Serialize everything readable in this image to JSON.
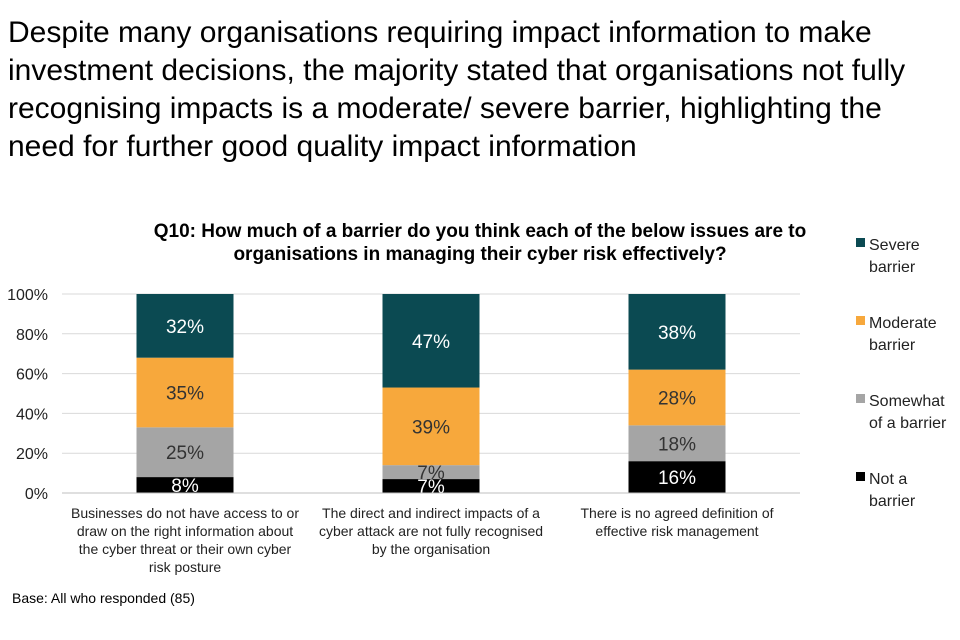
{
  "headline": "Despite many organisations requiring impact information to make investment decisions, the majority stated that organisations not fully recognising impacts is a moderate/ severe barrier, highlighting the need for further good quality impact information",
  "base_note": "Base: All who responded (85)",
  "colors": {
    "severe": "#0b4a52",
    "moderate": "#f7a83c",
    "somewhat": "#a5a5a5",
    "not": "#000000"
  },
  "chart_data": {
    "type": "bar",
    "stacked": true,
    "title": "Q10: How much of a barrier do you think each of the below issues are to organisations in managing their cyber risk effectively?",
    "categories": [
      [
        "Businesses do not have access to or",
        "draw on the right information about",
        "the cyber threat or their own cyber",
        "risk posture"
      ],
      [
        "The direct and indirect impacts of a",
        "cyber attack are not fully recognised",
        "by the organisation"
      ],
      [
        "There is no agreed definition of",
        "effective risk management"
      ]
    ],
    "series": [
      {
        "name": "Not a barrier",
        "legend_lines": [
          "Not a",
          "barrier"
        ],
        "values": [
          8,
          7,
          16
        ],
        "labels": [
          "8%",
          "7%",
          "16%"
        ]
      },
      {
        "name": "Somewhat of a barrier",
        "legend_lines": [
          "Somewhat",
          "of a barrier"
        ],
        "values": [
          25,
          7,
          18
        ],
        "labels": [
          "25%",
          "7%",
          "18%"
        ]
      },
      {
        "name": "Moderate barrier",
        "legend_lines": [
          "Moderate",
          "barrier"
        ],
        "values": [
          35,
          39,
          28
        ],
        "labels": [
          "35%",
          "39%",
          "28%"
        ]
      },
      {
        "name": "Severe barrier",
        "legend_lines": [
          "Severe",
          "barrier"
        ],
        "values": [
          32,
          47,
          38
        ],
        "labels": [
          "32%",
          "47%",
          "38%"
        ]
      }
    ],
    "y_ticks": [
      "0%",
      "20%",
      "40%",
      "60%",
      "80%",
      "100%"
    ],
    "ylim": [
      0,
      100
    ],
    "legend_position": "right"
  }
}
